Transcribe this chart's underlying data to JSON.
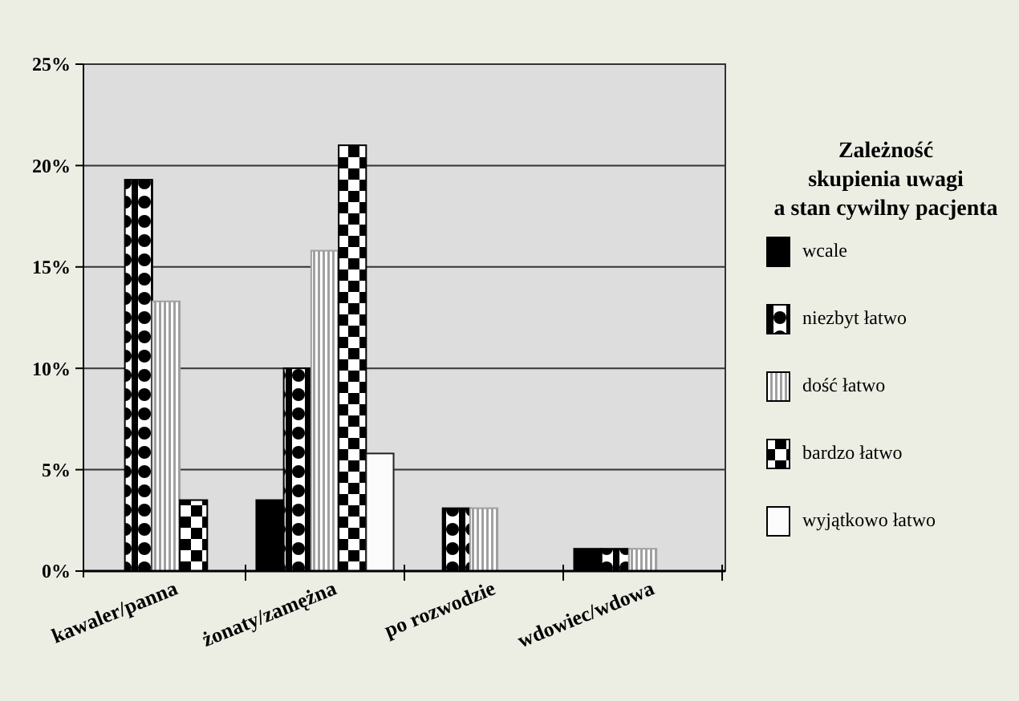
{
  "chart_data": {
    "type": "bar",
    "title": "Zależność skupienia uwagi a stan cywilny pacjenta",
    "categories": [
      "kawaler/panna",
      "żonaty/zamężna",
      "po rozwodzie",
      "wdowiec/wdowa"
    ],
    "series": [
      {
        "name": "wcale",
        "color": "#000000",
        "values": [
          0,
          3.5,
          0,
          1.1
        ]
      },
      {
        "name": "niezbyt łatwo",
        "color": "#000000",
        "values": [
          19.3,
          10,
          3.1,
          1.1
        ]
      },
      {
        "name": "dość łatwo",
        "color": "#a0a0a0",
        "values": [
          13.3,
          15.8,
          3.1,
          1.1
        ]
      },
      {
        "name": "bardzo łatwo",
        "color": "#000000",
        "values": [
          3.5,
          21,
          0,
          0
        ]
      },
      {
        "name": "wyjątkowo łatwo",
        "color": "#fcfcfc",
        "values": [
          0,
          5.8,
          0,
          0
        ]
      }
    ],
    "ylim": [
      0,
      25
    ],
    "yticks": [
      {
        "value": 0,
        "label": "0%"
      },
      {
        "value": 5,
        "label": "5%"
      },
      {
        "value": 10,
        "label": "10%"
      },
      {
        "value": 15,
        "label": "15%"
      },
      {
        "value": 20,
        "label": "20%"
      },
      {
        "value": 25,
        "label": "25%"
      }
    ],
    "grid": "y",
    "legend": "right"
  }
}
